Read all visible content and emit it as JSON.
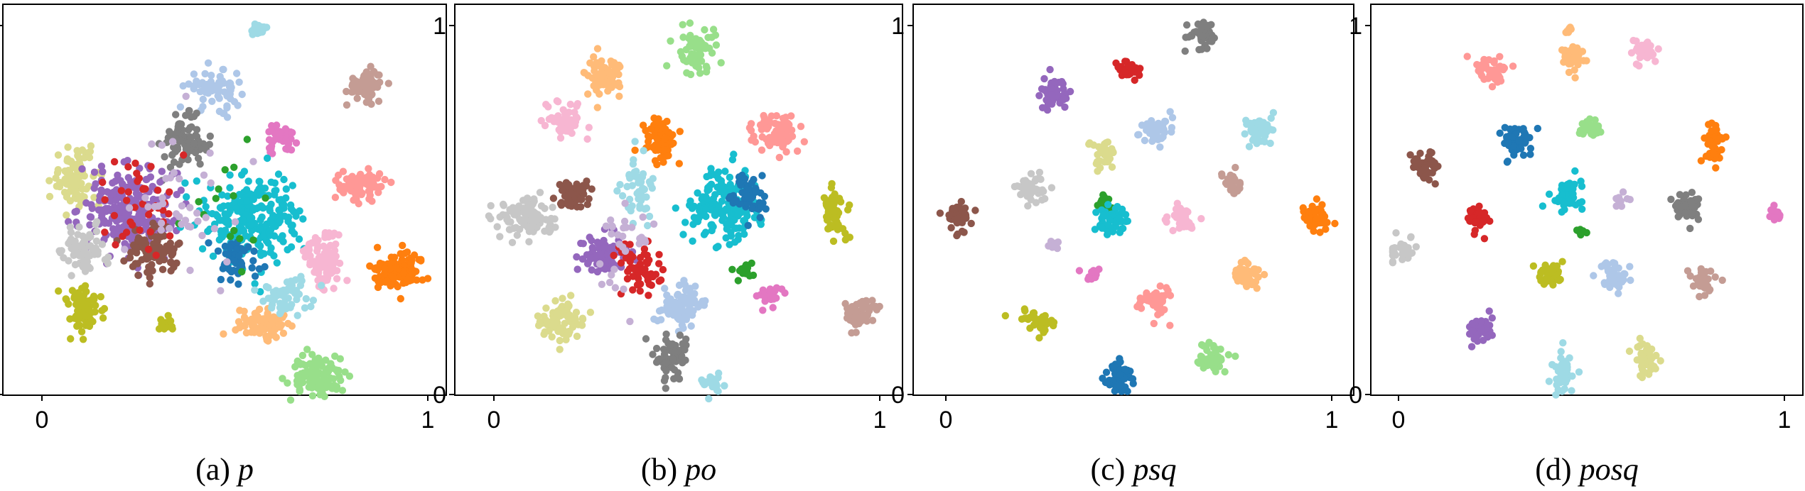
{
  "palette": [
    "#1f77b4",
    "#aec7e8",
    "#ff7f0e",
    "#ffbb78",
    "#2ca02c",
    "#98df8a",
    "#d62728",
    "#ff9896",
    "#9467bd",
    "#c5b0d5",
    "#8c564b",
    "#c49c94",
    "#e377c2",
    "#f7b6d2",
    "#7f7f7f",
    "#c7c7c7",
    "#bcbd22",
    "#dbdb8d",
    "#17becf",
    "#9edae5"
  ],
  "chart_data": [
    {
      "type": "scatter",
      "caption_prefix": "(a) ",
      "caption_var": "p",
      "xlim": [
        0,
        1
      ],
      "ylim": [
        0,
        1
      ],
      "xticks": [
        "0",
        "1"
      ],
      "yticks": [
        "0",
        "1"
      ],
      "clusters": [
        {
          "color": "#9edae5",
          "x": 0.56,
          "y": 0.99,
          "sx": 0.012,
          "sy": 0.008,
          "n": 25
        },
        {
          "color": "#c49c94",
          "x": 0.84,
          "y": 0.84,
          "sx": 0.025,
          "sy": 0.02,
          "n": 70
        },
        {
          "color": "#aec7e8",
          "x": 0.45,
          "y": 0.83,
          "sx": 0.035,
          "sy": 0.025,
          "n": 70
        },
        {
          "color": "#7f7f7f",
          "x": 0.37,
          "y": 0.68,
          "sx": 0.03,
          "sy": 0.035,
          "n": 80
        },
        {
          "color": "#e377c2",
          "x": 0.62,
          "y": 0.69,
          "sx": 0.018,
          "sy": 0.018,
          "n": 40
        },
        {
          "color": "#dbdb8d",
          "x": 0.09,
          "y": 0.59,
          "sx": 0.03,
          "sy": 0.04,
          "n": 90
        },
        {
          "color": "#9467bd",
          "x": 0.22,
          "y": 0.5,
          "sx": 0.06,
          "sy": 0.06,
          "n": 230
        },
        {
          "color": "#17becf",
          "x": 0.55,
          "y": 0.48,
          "sx": 0.06,
          "sy": 0.06,
          "n": 240
        },
        {
          "color": "#ff9896",
          "x": 0.83,
          "y": 0.57,
          "sx": 0.03,
          "sy": 0.022,
          "n": 80
        },
        {
          "color": "#8c564b",
          "x": 0.29,
          "y": 0.39,
          "sx": 0.035,
          "sy": 0.03,
          "n": 90
        },
        {
          "color": "#c7c7c7",
          "x": 0.11,
          "y": 0.39,
          "sx": 0.03,
          "sy": 0.03,
          "n": 70
        },
        {
          "color": "#1f77b4",
          "x": 0.5,
          "y": 0.36,
          "sx": 0.03,
          "sy": 0.03,
          "n": 50
        },
        {
          "color": "#f7b6d2",
          "x": 0.73,
          "y": 0.37,
          "sx": 0.025,
          "sy": 0.04,
          "n": 90
        },
        {
          "color": "#ff7f0e",
          "x": 0.92,
          "y": 0.34,
          "sx": 0.035,
          "sy": 0.025,
          "n": 110
        },
        {
          "color": "#bcbd22",
          "x": 0.11,
          "y": 0.23,
          "sx": 0.025,
          "sy": 0.03,
          "n": 70
        },
        {
          "color": "#bcbd22",
          "x": 0.32,
          "y": 0.19,
          "sx": 0.012,
          "sy": 0.012,
          "n": 20
        },
        {
          "color": "#ffbb78",
          "x": 0.58,
          "y": 0.19,
          "sx": 0.035,
          "sy": 0.022,
          "n": 90
        },
        {
          "color": "#9edae5",
          "x": 0.63,
          "y": 0.26,
          "sx": 0.03,
          "sy": 0.025,
          "n": 50
        },
        {
          "color": "#98df8a",
          "x": 0.71,
          "y": 0.05,
          "sx": 0.035,
          "sy": 0.025,
          "n": 110
        },
        {
          "color": "#d62728",
          "x": 0.27,
          "y": 0.52,
          "sx": 0.06,
          "sy": 0.08,
          "n": 40
        },
        {
          "color": "#2ca02c",
          "x": 0.47,
          "y": 0.5,
          "sx": 0.05,
          "sy": 0.1,
          "n": 15
        },
        {
          "color": "#c5b0d5",
          "x": 0.35,
          "y": 0.55,
          "sx": 0.08,
          "sy": 0.1,
          "n": 40
        }
      ]
    },
    {
      "type": "scatter",
      "caption_prefix": "(b) ",
      "caption_var": "po",
      "xlim": [
        0,
        1
      ],
      "ylim": [
        0,
        1
      ],
      "xticks": [
        "0",
        "1"
      ],
      "yticks": [
        "0",
        "1"
      ],
      "clusters": [
        {
          "color": "#98df8a",
          "x": 0.53,
          "y": 0.93,
          "sx": 0.025,
          "sy": 0.03,
          "n": 60
        },
        {
          "color": "#ffbb78",
          "x": 0.29,
          "y": 0.86,
          "sx": 0.025,
          "sy": 0.03,
          "n": 70
        },
        {
          "color": "#f7b6d2",
          "x": 0.18,
          "y": 0.74,
          "sx": 0.025,
          "sy": 0.025,
          "n": 50
        },
        {
          "color": "#ff7f0e",
          "x": 0.43,
          "y": 0.69,
          "sx": 0.025,
          "sy": 0.03,
          "n": 70
        },
        {
          "color": "#ff9896",
          "x": 0.73,
          "y": 0.71,
          "sx": 0.03,
          "sy": 0.025,
          "n": 70
        },
        {
          "color": "#8c564b",
          "x": 0.2,
          "y": 0.54,
          "sx": 0.025,
          "sy": 0.02,
          "n": 60
        },
        {
          "color": "#c7c7c7",
          "x": 0.08,
          "y": 0.48,
          "sx": 0.04,
          "sy": 0.025,
          "n": 90
        },
        {
          "color": "#9edae5",
          "x": 0.37,
          "y": 0.55,
          "sx": 0.02,
          "sy": 0.05,
          "n": 50
        },
        {
          "color": "#17becf",
          "x": 0.6,
          "y": 0.51,
          "sx": 0.045,
          "sy": 0.045,
          "n": 170
        },
        {
          "color": "#1f77b4",
          "x": 0.66,
          "y": 0.54,
          "sx": 0.02,
          "sy": 0.03,
          "n": 50
        },
        {
          "color": "#bcbd22",
          "x": 0.88,
          "y": 0.5,
          "sx": 0.015,
          "sy": 0.04,
          "n": 60
        },
        {
          "color": "#9467bd",
          "x": 0.28,
          "y": 0.38,
          "sx": 0.03,
          "sy": 0.025,
          "n": 80
        },
        {
          "color": "#d62728",
          "x": 0.38,
          "y": 0.34,
          "sx": 0.03,
          "sy": 0.035,
          "n": 60
        },
        {
          "color": "#aec7e8",
          "x": 0.49,
          "y": 0.24,
          "sx": 0.03,
          "sy": 0.03,
          "n": 80
        },
        {
          "color": "#2ca02c",
          "x": 0.65,
          "y": 0.33,
          "sx": 0.012,
          "sy": 0.01,
          "n": 15
        },
        {
          "color": "#e377c2",
          "x": 0.72,
          "y": 0.27,
          "sx": 0.015,
          "sy": 0.015,
          "n": 30
        },
        {
          "color": "#c49c94",
          "x": 0.95,
          "y": 0.22,
          "sx": 0.025,
          "sy": 0.02,
          "n": 50
        },
        {
          "color": "#dbdb8d",
          "x": 0.17,
          "y": 0.2,
          "sx": 0.03,
          "sy": 0.025,
          "n": 70
        },
        {
          "color": "#7f7f7f",
          "x": 0.46,
          "y": 0.1,
          "sx": 0.025,
          "sy": 0.03,
          "n": 60
        },
        {
          "color": "#9edae5",
          "x": 0.56,
          "y": 0.03,
          "sx": 0.02,
          "sy": 0.012,
          "n": 25
        },
        {
          "color": "#c5b0d5",
          "x": 0.33,
          "y": 0.4,
          "sx": 0.04,
          "sy": 0.06,
          "n": 30
        }
      ]
    },
    {
      "type": "scatter",
      "caption_prefix": "(c) ",
      "caption_var": "psq",
      "xlim": [
        0,
        1
      ],
      "ylim": [
        0,
        1
      ],
      "xticks": [
        "0",
        "1"
      ],
      "yticks": [
        "0",
        "1"
      ],
      "clusters": [
        {
          "color": "#7f7f7f",
          "x": 0.66,
          "y": 0.98,
          "sx": 0.018,
          "sy": 0.018,
          "n": 45
        },
        {
          "color": "#d62728",
          "x": 0.47,
          "y": 0.88,
          "sx": 0.015,
          "sy": 0.015,
          "n": 40
        },
        {
          "color": "#9467bd",
          "x": 0.28,
          "y": 0.81,
          "sx": 0.02,
          "sy": 0.02,
          "n": 50
        },
        {
          "color": "#aec7e8",
          "x": 0.55,
          "y": 0.72,
          "sx": 0.02,
          "sy": 0.02,
          "n": 45
        },
        {
          "color": "#9edae5",
          "x": 0.81,
          "y": 0.72,
          "sx": 0.02,
          "sy": 0.02,
          "n": 45
        },
        {
          "color": "#dbdb8d",
          "x": 0.41,
          "y": 0.65,
          "sx": 0.018,
          "sy": 0.02,
          "n": 45
        },
        {
          "color": "#c7c7c7",
          "x": 0.22,
          "y": 0.56,
          "sx": 0.02,
          "sy": 0.018,
          "n": 45
        },
        {
          "color": "#c49c94",
          "x": 0.74,
          "y": 0.57,
          "sx": 0.016,
          "sy": 0.016,
          "n": 35
        },
        {
          "color": "#2ca02c",
          "x": 0.41,
          "y": 0.52,
          "sx": 0.008,
          "sy": 0.012,
          "n": 15
        },
        {
          "color": "#8c564b",
          "x": 0.03,
          "y": 0.48,
          "sx": 0.016,
          "sy": 0.02,
          "n": 40
        },
        {
          "color": "#17becf",
          "x": 0.43,
          "y": 0.47,
          "sx": 0.02,
          "sy": 0.02,
          "n": 50
        },
        {
          "color": "#f7b6d2",
          "x": 0.61,
          "y": 0.47,
          "sx": 0.016,
          "sy": 0.02,
          "n": 40
        },
        {
          "color": "#ff7f0e",
          "x": 0.96,
          "y": 0.48,
          "sx": 0.018,
          "sy": 0.018,
          "n": 50
        },
        {
          "color": "#c5b0d5",
          "x": 0.28,
          "y": 0.41,
          "sx": 0.008,
          "sy": 0.008,
          "n": 10
        },
        {
          "color": "#e377c2",
          "x": 0.38,
          "y": 0.33,
          "sx": 0.01,
          "sy": 0.01,
          "n": 15
        },
        {
          "color": "#ff9896",
          "x": 0.54,
          "y": 0.25,
          "sx": 0.02,
          "sy": 0.02,
          "n": 45
        },
        {
          "color": "#ffbb78",
          "x": 0.78,
          "y": 0.32,
          "sx": 0.018,
          "sy": 0.02,
          "n": 45
        },
        {
          "color": "#bcbd22",
          "x": 0.24,
          "y": 0.2,
          "sx": 0.022,
          "sy": 0.018,
          "n": 45
        },
        {
          "color": "#98df8a",
          "x": 0.69,
          "y": 0.1,
          "sx": 0.02,
          "sy": 0.018,
          "n": 45
        },
        {
          "color": "#1f77b4",
          "x": 0.45,
          "y": 0.05,
          "sx": 0.018,
          "sy": 0.02,
          "n": 50
        }
      ]
    },
    {
      "type": "scatter",
      "caption_prefix": "(d) ",
      "caption_var": "posq",
      "xlim": [
        0,
        1
      ],
      "ylim": [
        0,
        1
      ],
      "xticks": [
        "0",
        "1"
      ],
      "yticks": [
        "0",
        "1"
      ],
      "clusters": [
        {
          "color": "#ffbb78",
          "x": 0.44,
          "y": 0.99,
          "sx": 0.006,
          "sy": 0.006,
          "n": 8
        },
        {
          "color": "#ff9896",
          "x": 0.24,
          "y": 0.88,
          "sx": 0.02,
          "sy": 0.018,
          "n": 40
        },
        {
          "color": "#ffbb78",
          "x": 0.45,
          "y": 0.91,
          "sx": 0.016,
          "sy": 0.018,
          "n": 40
        },
        {
          "color": "#f7b6d2",
          "x": 0.64,
          "y": 0.93,
          "sx": 0.018,
          "sy": 0.015,
          "n": 40
        },
        {
          "color": "#1f77b4",
          "x": 0.31,
          "y": 0.69,
          "sx": 0.018,
          "sy": 0.02,
          "n": 50
        },
        {
          "color": "#98df8a",
          "x": 0.5,
          "y": 0.72,
          "sx": 0.016,
          "sy": 0.016,
          "n": 40
        },
        {
          "color": "#ff7f0e",
          "x": 0.82,
          "y": 0.69,
          "sx": 0.012,
          "sy": 0.03,
          "n": 45
        },
        {
          "color": "#8c564b",
          "x": 0.07,
          "y": 0.62,
          "sx": 0.02,
          "sy": 0.018,
          "n": 45
        },
        {
          "color": "#17becf",
          "x": 0.44,
          "y": 0.54,
          "sx": 0.02,
          "sy": 0.018,
          "n": 50
        },
        {
          "color": "#c5b0d5",
          "x": 0.58,
          "y": 0.53,
          "sx": 0.008,
          "sy": 0.008,
          "n": 10
        },
        {
          "color": "#7f7f7f",
          "x": 0.75,
          "y": 0.51,
          "sx": 0.02,
          "sy": 0.018,
          "n": 45
        },
        {
          "color": "#e377c2",
          "x": 0.98,
          "y": 0.49,
          "sx": 0.008,
          "sy": 0.01,
          "n": 15
        },
        {
          "color": "#d62728",
          "x": 0.2,
          "y": 0.48,
          "sx": 0.016,
          "sy": 0.018,
          "n": 40
        },
        {
          "color": "#2ca02c",
          "x": 0.47,
          "y": 0.44,
          "sx": 0.008,
          "sy": 0.006,
          "n": 10
        },
        {
          "color": "#c7c7c7",
          "x": 0.01,
          "y": 0.39,
          "sx": 0.016,
          "sy": 0.02,
          "n": 40
        },
        {
          "color": "#bcbd22",
          "x": 0.39,
          "y": 0.32,
          "sx": 0.016,
          "sy": 0.018,
          "n": 40
        },
        {
          "color": "#aec7e8",
          "x": 0.56,
          "y": 0.32,
          "sx": 0.018,
          "sy": 0.02,
          "n": 45
        },
        {
          "color": "#c49c94",
          "x": 0.79,
          "y": 0.31,
          "sx": 0.016,
          "sy": 0.015,
          "n": 35
        },
        {
          "color": "#9467bd",
          "x": 0.21,
          "y": 0.18,
          "sx": 0.018,
          "sy": 0.02,
          "n": 45
        },
        {
          "color": "#9edae5",
          "x": 0.43,
          "y": 0.06,
          "sx": 0.015,
          "sy": 0.03,
          "n": 40
        },
        {
          "color": "#dbdb8d",
          "x": 0.64,
          "y": 0.1,
          "sx": 0.015,
          "sy": 0.022,
          "n": 40
        }
      ]
    }
  ]
}
